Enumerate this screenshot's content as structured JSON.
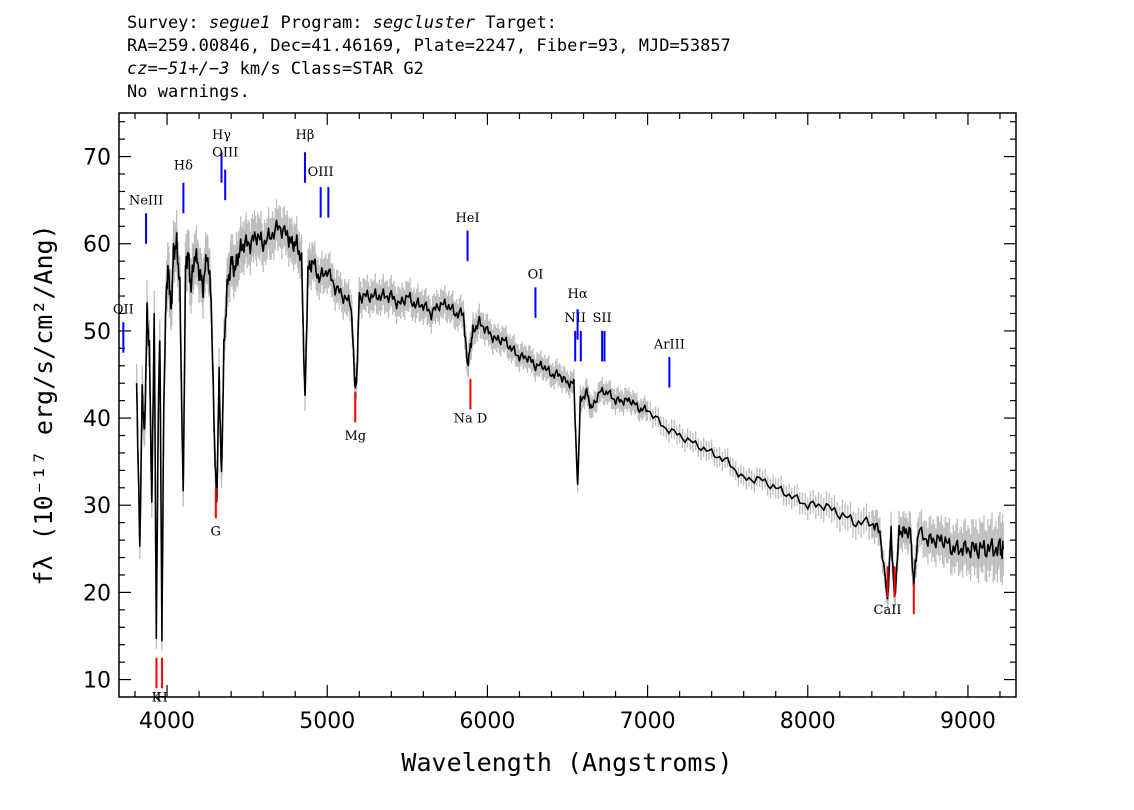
{
  "header": {
    "line1": {
      "survey_label": "Survey: ",
      "survey": "segue1",
      "program_label": " Program: ",
      "program": "segcluster",
      "target_label": " Target:"
    },
    "line2": "RA=259.00846, Dec=41.46169, Plate=2247, Fiber=93, MJD=53857",
    "line3": {
      "cz_label": "cz",
      "cz": "=−51+/−3",
      "rest": " km/s Class=STAR G2"
    },
    "line4": "No warnings."
  },
  "colors": {
    "flux": "#000000",
    "error_band": "#bdbdbd",
    "emission_line": "#0000ff",
    "absorption_line": "#ff0000"
  },
  "chart_data": {
    "type": "line",
    "title": "",
    "xlabel": "Wavelength (Angstroms)",
    "ylabel": "fλ (10⁻¹⁷ erg/s/cm²/Ang)",
    "xlim": [
      3700,
      9300
    ],
    "ylim": [
      8,
      75
    ],
    "xticks": [
      4000,
      5000,
      6000,
      7000,
      8000,
      9000
    ],
    "yticks": [
      10,
      20,
      30,
      40,
      50,
      60,
      70
    ],
    "grid": false,
    "series": [
      {
        "x": [
          3810,
          3830,
          3845,
          3860,
          3875,
          3890,
          3905,
          3920,
          3933,
          3945,
          3955,
          3968,
          3980,
          3995,
          4010,
          4025,
          4040,
          4060,
          4080,
          4101,
          4115,
          4130,
          4150,
          4175,
          4200,
          4225,
          4250,
          4275,
          4295,
          4310,
          4325,
          4340,
          4355,
          4375,
          4400,
          4425,
          4450,
          4480,
          4520,
          4560,
          4600,
          4650,
          4700,
          4750,
          4780,
          4810,
          4840,
          4861,
          4880,
          4910,
          4950,
          5000,
          5050,
          5100,
          5150,
          5172,
          5183,
          5200,
          5250,
          5300,
          5350,
          5400,
          5450,
          5500,
          5550,
          5600,
          5650,
          5700,
          5750,
          5800,
          5850,
          5875,
          5893,
          5910,
          5950,
          6000,
          6050,
          6100,
          6150,
          6200,
          6250,
          6300,
          6350,
          6400,
          6450,
          6500,
          6540,
          6563,
          6580,
          6620,
          6650,
          6700,
          6750,
          6800,
          6850,
          6900,
          6950,
          7000,
          7100,
          7200,
          7300,
          7400,
          7500,
          7600,
          7700,
          7800,
          7900,
          8000,
          8100,
          8200,
          8300,
          8400,
          8450,
          8498,
          8520,
          8542,
          8570,
          8600,
          8640,
          8662,
          8690,
          8750,
          8800,
          8850,
          8900,
          8950,
          9000,
          9050,
          9100,
          9150,
          9200,
          9220
        ],
        "y": [
          44,
          25,
          43,
          38,
          52,
          48,
          30,
          52,
          15,
          40,
          50,
          15,
          42,
          55,
          57,
          52,
          59,
          60,
          55,
          31,
          57,
          59,
          55,
          59,
          57,
          55,
          59,
          54,
          38,
          30,
          45,
          33,
          48,
          55,
          58,
          57,
          59,
          60,
          60,
          61,
          60,
          61,
          62,
          61,
          60,
          60,
          58,
          42,
          57,
          58,
          56,
          57,
          55,
          54,
          53,
          44,
          44,
          54,
          54,
          54,
          54,
          54,
          53,
          54,
          53,
          53,
          52,
          53,
          53,
          52,
          52,
          46,
          48,
          50,
          51,
          50,
          49,
          49,
          48,
          47,
          47,
          46,
          46,
          45,
          45,
          44,
          44,
          32,
          42,
          43,
          41,
          43,
          43,
          42,
          42,
          42,
          41,
          41,
          39,
          38,
          37,
          36,
          35,
          33,
          33,
          32,
          31,
          30,
          30,
          29,
          28,
          28,
          27,
          19,
          27,
          19,
          27,
          27,
          27,
          21,
          27,
          26,
          26,
          26,
          25,
          25,
          25,
          25,
          25,
          25,
          25,
          25
        ],
        "err": [
          2.2,
          1.5,
          2.2,
          2,
          2.6,
          2.4,
          1.8,
          2.6,
          1.2,
          2,
          2.5,
          1.2,
          2.1,
          2.6,
          2.7,
          2.5,
          2.7,
          2.7,
          2.5,
          1.8,
          2.6,
          2.7,
          2.5,
          2.7,
          2.6,
          2.5,
          2.7,
          2.5,
          2,
          1.8,
          2.2,
          1.9,
          2.3,
          2.5,
          2.6,
          2.5,
          2.6,
          2.6,
          2.5,
          2.5,
          2.4,
          2.4,
          2.4,
          2.3,
          2.2,
          2.2,
          2.1,
          1.8,
          2.1,
          2.1,
          2,
          2,
          1.9,
          1.9,
          1.8,
          1.6,
          1.6,
          1.8,
          1.8,
          1.8,
          1.8,
          1.8,
          1.7,
          1.7,
          1.7,
          1.7,
          1.6,
          1.6,
          1.6,
          1.6,
          1.5,
          1.4,
          1.4,
          1.5,
          1.5,
          1.5,
          1.4,
          1.4,
          1.4,
          1.3,
          1.3,
          1.3,
          1.3,
          1.3,
          1.3,
          1.2,
          1.2,
          1,
          1.2,
          1.2,
          1.2,
          1.2,
          1.2,
          1.2,
          1.2,
          1.2,
          1.1,
          1.1,
          1.1,
          1.1,
          1.1,
          1.1,
          1.1,
          1.1,
          1.1,
          1.2,
          1.2,
          1.3,
          1.4,
          1.5,
          1.5,
          1.6,
          1.6,
          1.4,
          1.7,
          1.4,
          1.7,
          1.8,
          1.9,
          1.6,
          2,
          2.1,
          2.2,
          2.3,
          2.4,
          2.5,
          2.6,
          2.8,
          2.9,
          3,
          3.1,
          3.1
        ]
      }
    ],
    "emission_lines": [
      {
        "label": "OII",
        "wave": 3727,
        "top": 51,
        "label_y": 52
      },
      {
        "label": "NeIII",
        "wave": 3869,
        "top": 63.5,
        "label_y": 64.5
      },
      {
        "label": "Hδ",
        "wave": 4102,
        "top": 67,
        "label_y": 68.5
      },
      {
        "label": "Hγ",
        "wave": 4340,
        "top": 70.5,
        "label_y": 72
      },
      {
        "label": "OIII",
        "wave": 4363,
        "top": 68.5,
        "label_y": 70
      },
      {
        "label": "Hβ",
        "wave": 4861,
        "top": 70.5,
        "label_y": 72
      },
      {
        "label": "OIII",
        "wave": 4959,
        "top": 66.5,
        "label_y": 67.8
      },
      {
        "label": "OIII",
        "wave": 5007,
        "top": 66.5,
        "label_y": null
      },
      {
        "label": "HeI",
        "wave": 5876,
        "top": 61.5,
        "label_y": 62.5
      },
      {
        "label": "OI",
        "wave": 6300,
        "top": 55,
        "label_y": 56
      },
      {
        "label": "NII",
        "wave": 6548,
        "top": 50,
        "label_y": 51
      },
      {
        "label": "Hα",
        "wave": 6563,
        "top": 52.5,
        "label_y": 53.8
      },
      {
        "label": "NII",
        "wave": 6583,
        "top": 50,
        "label_y": null
      },
      {
        "label": "SII",
        "wave": 6716,
        "top": 50,
        "label_y": 51
      },
      {
        "label": "SII",
        "wave": 6731,
        "top": 50,
        "label_y": null
      },
      {
        "label": "ArIII",
        "wave": 7136,
        "top": 47,
        "label_y": 48
      }
    ],
    "absorption_lines": [
      {
        "label": "K",
        "wave": 3934,
        "bottom": 9,
        "label_y": 7.5
      },
      {
        "label": "H",
        "wave": 3969,
        "bottom": 9,
        "label_y": 7.5
      },
      {
        "label": "G",
        "wave": 4304,
        "bottom": 28.5,
        "label_y": 26.5
      },
      {
        "label": "Mg",
        "wave": 5175,
        "bottom": 39.5,
        "label_y": 37.5
      },
      {
        "label": "Na D",
        "wave": 5894,
        "bottom": 41,
        "label_y": 39.5
      },
      {
        "label": "CaII",
        "wave": 8498,
        "bottom": 19.5,
        "label_y": 17.5
      },
      {
        "label": "CaII",
        "wave": 8542,
        "bottom": 19.5,
        "label_y": null
      },
      {
        "label": "CaII",
        "wave": 8662,
        "bottom": 17.5,
        "label_y": null
      }
    ]
  }
}
